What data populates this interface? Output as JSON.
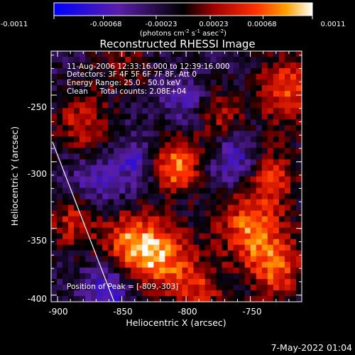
{
  "colorbar": {
    "ticks": [
      "-0.0011",
      "-0.00068",
      "-0.00023",
      "0.00023",
      "0.00068",
      "0.0011"
    ],
    "min": -0.0011,
    "max": 0.0011,
    "units_main": "(photons cm",
    "units_sup1": "-2",
    "units_mid1": " s",
    "units_sup2": "-1",
    "units_mid2": " asec",
    "units_sup3": "-2",
    "units_end": ")"
  },
  "chart_data": {
    "type": "heatmap",
    "title": "Reconstructed RHESSI Image",
    "xlabel": "Heliocentric X (arcsec)",
    "ylabel": "Heliocentric Y (arcsec)",
    "xlim": [
      -905,
      -710
    ],
    "ylim": [
      -405,
      -217
    ],
    "x_ticks": [
      -900,
      -850,
      -800,
      -750
    ],
    "y_ticks": [
      -250,
      -300,
      -350,
      -400
    ],
    "info_lines": [
      "11-Aug-2006 12:33:16.000 to 12:39:16.000",
      "Detectors: 3F 4F 5F 6F 7F 8F, Att 0",
      "Energy Range: 25.0 - 50.0 keV",
      "Clean     Total counts: 2.08E+04"
    ],
    "peak_text": "Position of Peak = [-809,-303]",
    "peak": {
      "x": -809,
      "y": -303,
      "value": 0.0011
    },
    "limb_line": {
      "x": [
        -904,
        -856
      ],
      "y": [
        -285,
        -405
      ]
    },
    "sources": [
      {
        "x": -809,
        "y": -303,
        "value": 0.0011,
        "spread": 14
      },
      {
        "x": -820,
        "y": -372,
        "value": 0.0009,
        "spread": 18
      },
      {
        "x": -842,
        "y": -360,
        "value": 0.0008,
        "spread": 16
      },
      {
        "x": -750,
        "y": -350,
        "value": 0.0009,
        "spread": 18
      },
      {
        "x": -730,
        "y": -380,
        "value": 0.0008,
        "spread": 16
      },
      {
        "x": -720,
        "y": -245,
        "value": 0.0008,
        "spread": 18
      },
      {
        "x": -735,
        "y": -310,
        "value": 0.0007,
        "spread": 16
      },
      {
        "x": -880,
        "y": -270,
        "value": 0.0006,
        "spread": 16
      },
      {
        "x": -888,
        "y": -345,
        "value": 0.0006,
        "spread": 14
      },
      {
        "x": -775,
        "y": -265,
        "value": 0.0005,
        "spread": 14
      },
      {
        "x": -850,
        "y": -225,
        "value": 0.0004,
        "spread": 14
      },
      {
        "x": -790,
        "y": -395,
        "value": 0.0006,
        "spread": 14
      }
    ],
    "minima": [
      {
        "x": -760,
        "y": -300,
        "value": -0.0006,
        "spread": 14
      },
      {
        "x": -835,
        "y": -300,
        "value": -0.0005,
        "spread": 14
      },
      {
        "x": -870,
        "y": -315,
        "value": -0.0004,
        "spread": 14
      },
      {
        "x": -800,
        "y": -255,
        "value": -0.0004,
        "spread": 12
      },
      {
        "x": -860,
        "y": -395,
        "value": -0.0006,
        "spread": 12
      }
    ]
  },
  "footer": {
    "timestamp": "7-May-2022 01:04"
  }
}
